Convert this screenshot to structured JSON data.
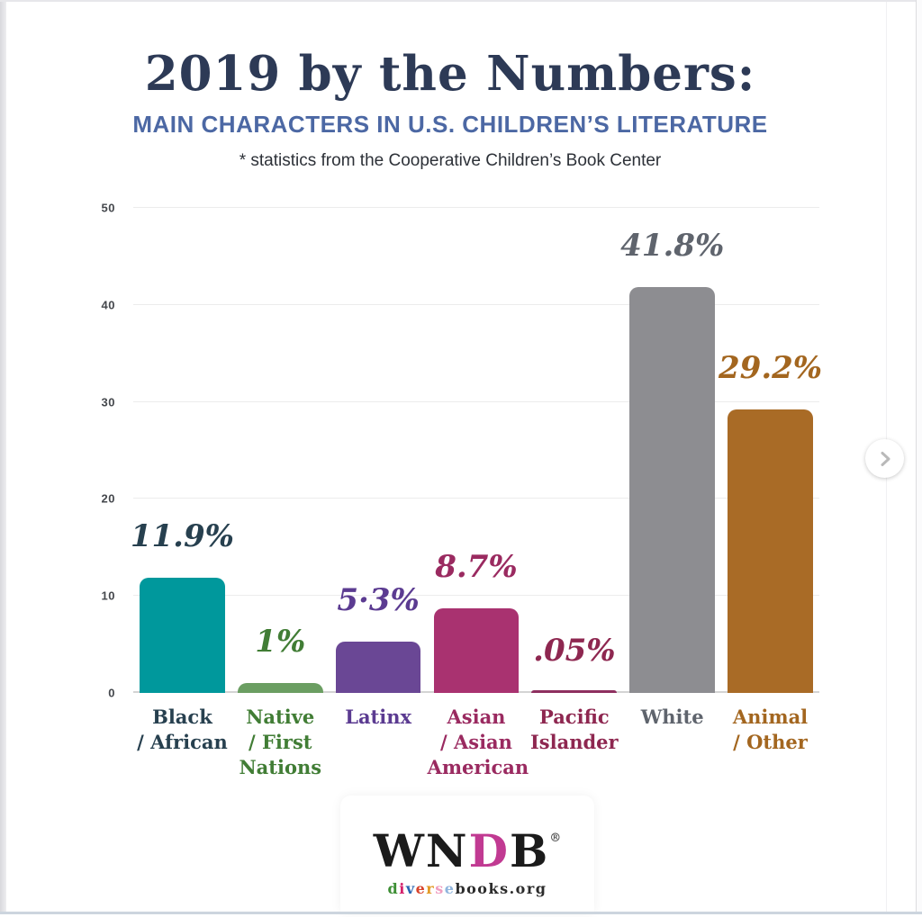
{
  "header": {
    "title": "2019 by the Numbers:",
    "subtitle": "MAIN CHARACTERS IN U.S. CHILDREN’S LITERATURE",
    "note": "* statistics from the Cooperative Children’s Book Center"
  },
  "chart_data": {
    "type": "bar",
    "title": "2019 by the Numbers: Main Characters in U.S. Children's Literature",
    "source_note": "* statistics from the Cooperative Children's Book Center",
    "categories": [
      "Black / African",
      "Native / First Nations",
      "Latinx",
      "Asian / Asian American",
      "Pacific Islander",
      "White",
      "Animal / Other"
    ],
    "category_lines": [
      [
        "Black",
        "/ African"
      ],
      [
        "Native",
        "/ First",
        "Nations"
      ],
      [
        "Latinx"
      ],
      [
        "Asian",
        "/ Asian",
        "American"
      ],
      [
        "Pacific",
        "Islander"
      ],
      [
        "White"
      ],
      [
        "Animal",
        "/ Other"
      ]
    ],
    "values": [
      11.9,
      1,
      5.3,
      8.7,
      0.05,
      41.8,
      29.2
    ],
    "value_labels": [
      "11.9%",
      "1%",
      "5·3%",
      "8.7%",
      ".05%",
      "41.8%",
      "29.2%"
    ],
    "bar_colors": [
      "#00989c",
      "#6b9e62",
      "#6a4795",
      "#a93270",
      "#8e2f5f",
      "#8d8d91",
      "#a96b26"
    ],
    "text_colors": [
      "#27404f",
      "#417d35",
      "#5b3b91",
      "#9a2a60",
      "#8e2750",
      "#5f646d",
      "#a3661f"
    ],
    "xlabel": "",
    "ylabel": "",
    "ylim": [
      0,
      50
    ],
    "yticks": [
      0,
      10,
      20,
      30,
      40,
      50
    ],
    "ytick_labels": [
      "0",
      "10",
      "20",
      "30",
      "40",
      "50"
    ],
    "grid": true,
    "legend": false
  },
  "logo": {
    "wn": "WN",
    "d": "D",
    "b": "B",
    "registered": "®",
    "site_letters": [
      {
        "ch": "d",
        "color": "#3d8f35"
      },
      {
        "ch": "i",
        "color": "#d4216b"
      },
      {
        "ch": "v",
        "color": "#2a66b2"
      },
      {
        "ch": "e",
        "color": "#d8432b"
      },
      {
        "ch": "r",
        "color": "#e39b27"
      },
      {
        "ch": "s",
        "color": "#ef9dc0"
      },
      {
        "ch": "e",
        "color": "#8fb4dd"
      },
      {
        "ch": "b",
        "color": "#2b2b2b"
      },
      {
        "ch": "o",
        "color": "#2b2b2b"
      },
      {
        "ch": "o",
        "color": "#2b2b2b"
      },
      {
        "ch": "k",
        "color": "#2b2b2b"
      },
      {
        "ch": "s",
        "color": "#2b2b2b"
      },
      {
        "ch": ".",
        "color": "#2b2b2b"
      },
      {
        "ch": "o",
        "color": "#2b2b2b"
      },
      {
        "ch": "r",
        "color": "#2b2b2b"
      },
      {
        "ch": "g",
        "color": "#2b2b2b"
      }
    ]
  },
  "carousel": {
    "next_label": "Next"
  }
}
